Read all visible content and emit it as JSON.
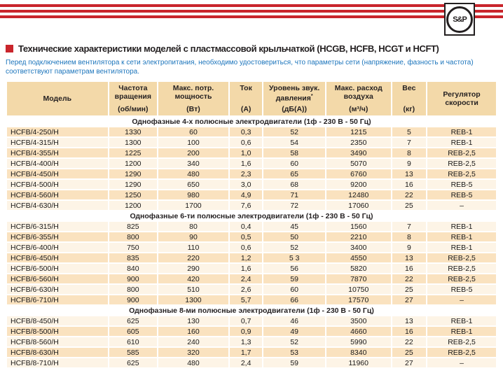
{
  "colors": {
    "red": "#C9252C",
    "blue": "#1C75BC",
    "tan": "#F3D9A9",
    "peach": "#FAE2BF",
    "cream": "#FDF4E6",
    "ink": "#231F20"
  },
  "brand": {
    "logo_text": "S&P"
  },
  "title": "Технические характеристики моделей с пластмассовой крыльчаткой (HCGB, HCFB, HCGT и HCFT)",
  "note": "Перед подключением вентилятора к сети электропитания, необходимо удостовериться, что параметры сети (напряжение, фазность и частота) соответствуют параметрам вентилятора.",
  "table": {
    "columns": [
      {
        "label": "Модель",
        "unit": ""
      },
      {
        "label": "Частота вращения",
        "unit": "(об/мин)"
      },
      {
        "label": "Макс. потр. мощность",
        "unit": "(Вт)"
      },
      {
        "label": "Ток",
        "unit": "(А)"
      },
      {
        "label": "Уровень звук. давления*",
        "unit": "(дБ(А))"
      },
      {
        "label": "Макс. расход воздуха",
        "unit": "(м³/ч)"
      },
      {
        "label": "Вес",
        "unit": "(кг)"
      },
      {
        "label": "Регулятор скорости",
        "unit": ""
      }
    ],
    "sections": [
      {
        "title": "Однофазные 4-х полюсные электродвигатели (1ф - 230 В - 50 Гц)",
        "first_row_shaded": true,
        "rows": [
          [
            "HCFB/4-250/H",
            "1330",
            "60",
            "0,3",
            "52",
            "1215",
            "5",
            "REB-1"
          ],
          [
            "HCFB/4-315/H",
            "1300",
            "100",
            "0,6",
            "54",
            "2350",
            "7",
            "REB-1"
          ],
          [
            "HCFB/4-355/H",
            "1225",
            "200",
            "1,0",
            "58",
            "3490",
            "8",
            "REB-2,5"
          ],
          [
            "HCFB/4-400/H",
            "1200",
            "340",
            "1,6",
            "60",
            "5070",
            "9",
            "REB-2,5"
          ],
          [
            "HCFB/4-450/H",
            "1290",
            "480",
            "2,3",
            "65",
            "6760",
            "13",
            "REB-2,5"
          ],
          [
            "HCFB/4-500/H",
            "1290",
            "650",
            "3,0",
            "68",
            "9200",
            "16",
            "REB-5"
          ],
          [
            "HCFB/4-560/H",
            "1250",
            "980",
            "4,9",
            "71",
            "12480",
            "22",
            "REB-5"
          ],
          [
            "HCFB/4-630/H",
            "1200",
            "1700",
            "7,6",
            "72",
            "17060",
            "25",
            "–"
          ]
        ]
      },
      {
        "title": "Однофазные 6-ти полюсные электродвигатели (1ф - 230 В - 50 Гц)",
        "first_row_shaded": false,
        "rows": [
          [
            "HCFB/6-315/H",
            "825",
            "80",
            "0,4",
            "45",
            "1560",
            "7",
            "REB-1"
          ],
          [
            "HCFB/6-355/H",
            "800",
            "90",
            "0,5",
            "50",
            "2210",
            "8",
            "REB-1"
          ],
          [
            "HCFB/6-400/H",
            "750",
            "110",
            "0,6",
            "52",
            "3400",
            "9",
            "REB-1"
          ],
          [
            "HCFB/6-450/H",
            "835",
            "220",
            "1,2",
            "5 3",
            "4550",
            "13",
            "REB-2,5"
          ],
          [
            "HCFB/6-500/H",
            "840",
            "290",
            "1,6",
            "56",
            "5820",
            "16",
            "REB-2,5"
          ],
          [
            "HCFB/6-560/H",
            "900",
            "420",
            "2,4",
            "59",
            "7870",
            "22",
            "REB-2,5"
          ],
          [
            "HCFB/6-630/H",
            "800",
            "510",
            "2,6",
            "60",
            "10750",
            "25",
            "REB-5"
          ],
          [
            "HCFB/6-710/H",
            "900",
            "1300",
            "5,7",
            "66",
            "17570",
            "27",
            "–"
          ]
        ]
      },
      {
        "title": "Однофазные 8-ми полюсные электродвигатели (1ф - 230 В - 50 Гц)",
        "first_row_shaded": false,
        "rows": [
          [
            "HCFB/8-450/H",
            "625",
            "130",
            "0,7",
            "46",
            "3500",
            "13",
            "REB-1"
          ],
          [
            "HCFB/8-500/H",
            "605",
            "160",
            "0,9",
            "49",
            "4660",
            "16",
            "REB-1"
          ],
          [
            "HCFB/8-560/H",
            "610",
            "240",
            "1,3",
            "52",
            "5990",
            "22",
            "REB-2,5"
          ],
          [
            "HCFB/8-630/H",
            "585",
            "320",
            "1,7",
            "53",
            "8340",
            "25",
            "REB-2,5"
          ],
          [
            "HCFB/8-710/H",
            "625",
            "480",
            "2,4",
            "59",
            "11960",
            "27",
            "–"
          ]
        ]
      }
    ]
  }
}
